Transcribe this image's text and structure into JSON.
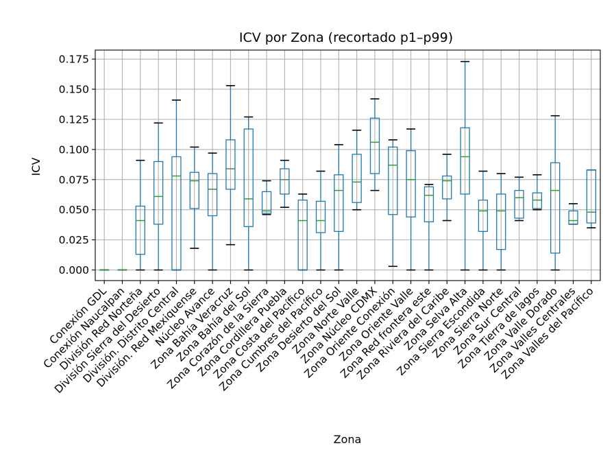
{
  "chart_data": {
    "type": "box",
    "title": "ICV por Zona (recortado p1–p99)",
    "xlabel": "Zona",
    "ylabel": "ICV",
    "ylim": [
      -0.0088,
      0.1825
    ],
    "yticks": [
      0.0,
      0.025,
      0.05,
      0.075,
      0.1,
      0.125,
      0.15,
      0.175
    ],
    "ytick_labels": [
      "0.000",
      "0.025",
      "0.050",
      "0.075",
      "0.100",
      "0.125",
      "0.150",
      "0.175"
    ],
    "grid": true,
    "colors": {
      "box": "#1f77b4",
      "median": "#2ca02c",
      "grid": "#b0b0b0"
    },
    "categories": [
      "Conexión GDL",
      "Conexión Naucalpan",
      "División Red Norteña",
      "División Sierra del Desierto",
      "División. Distrito Central",
      "División. Red Mexiquense",
      "Núcleo Avance",
      "Zona Bahía Veracruz",
      "Zona Bahía del Sol",
      "Zona Corazón de la Sierra",
      "Zona Cordillera Puebla",
      "Zona Costa del Pacífico",
      "Zona Cumbres del Pacífico",
      "Zona Desierto del Sol",
      "Zona Norte Valle",
      "Zona Núcleo CDMX",
      "Zona Oriente Conexión",
      "Zona Oriente Valle",
      "Zona Red frontera este",
      "Zona Riviera del Caribe",
      "Zona Selva Alta",
      "Zona Sierra Escondida",
      "Zona Sierra Norte",
      "Zona Sur Central",
      "Zona Tierra de lagos",
      "Zona Valle Dorado",
      "Zona Valles Centrales",
      "Zona Valles del Pacífico"
    ],
    "boxes": [
      {
        "whislo": 0.0,
        "q1": 0.0,
        "med": 0.0,
        "q3": 0.0,
        "whishi": 0.0
      },
      {
        "whislo": 0.0,
        "q1": 0.0,
        "med": 0.0,
        "q3": 0.0,
        "whishi": 0.0
      },
      {
        "whislo": 0.0,
        "q1": 0.013,
        "med": 0.041,
        "q3": 0.053,
        "whishi": 0.091
      },
      {
        "whislo": 0.0,
        "q1": 0.038,
        "med": 0.061,
        "q3": 0.09,
        "whishi": 0.122
      },
      {
        "whislo": 0.0,
        "q1": 0.0,
        "med": 0.078,
        "q3": 0.094,
        "whishi": 0.141
      },
      {
        "whislo": 0.018,
        "q1": 0.051,
        "med": 0.074,
        "q3": 0.081,
        "whishi": 0.102
      },
      {
        "whislo": 0.0,
        "q1": 0.045,
        "med": 0.067,
        "q3": 0.08,
        "whishi": 0.097
      },
      {
        "whislo": 0.021,
        "q1": 0.067,
        "med": 0.084,
        "q3": 0.108,
        "whishi": 0.153
      },
      {
        "whislo": 0.0,
        "q1": 0.036,
        "med": 0.059,
        "q3": 0.117,
        "whishi": 0.127
      },
      {
        "whislo": 0.046,
        "q1": 0.047,
        "med": 0.049,
        "q3": 0.065,
        "whishi": 0.074
      },
      {
        "whislo": 0.052,
        "q1": 0.063,
        "med": 0.075,
        "q3": 0.084,
        "whishi": 0.091
      },
      {
        "whislo": 0.0,
        "q1": 0.0,
        "med": 0.041,
        "q3": 0.058,
        "whishi": 0.063
      },
      {
        "whislo": 0.0,
        "q1": 0.031,
        "med": 0.041,
        "q3": 0.057,
        "whishi": 0.082
      },
      {
        "whislo": 0.0,
        "q1": 0.032,
        "med": 0.066,
        "q3": 0.079,
        "whishi": 0.104
      },
      {
        "whislo": 0.05,
        "q1": 0.056,
        "med": 0.073,
        "q3": 0.096,
        "whishi": 0.116
      },
      {
        "whislo": 0.066,
        "q1": 0.08,
        "med": 0.106,
        "q3": 0.126,
        "whishi": 0.142
      },
      {
        "whislo": 0.003,
        "q1": 0.046,
        "med": 0.087,
        "q3": 0.102,
        "whishi": 0.108
      },
      {
        "whislo": 0.0,
        "q1": 0.044,
        "med": 0.075,
        "q3": 0.099,
        "whishi": 0.117
      },
      {
        "whislo": 0.0,
        "q1": 0.04,
        "med": 0.062,
        "q3": 0.069,
        "whishi": 0.071
      },
      {
        "whislo": 0.041,
        "q1": 0.059,
        "med": 0.074,
        "q3": 0.078,
        "whishi": 0.096
      },
      {
        "whislo": 0.0,
        "q1": 0.063,
        "med": 0.094,
        "q3": 0.118,
        "whishi": 0.173
      },
      {
        "whislo": 0.0,
        "q1": 0.032,
        "med": 0.049,
        "q3": 0.058,
        "whishi": 0.082
      },
      {
        "whislo": 0.0,
        "q1": 0.017,
        "med": 0.049,
        "q3": 0.063,
        "whishi": 0.08
      },
      {
        "whislo": 0.041,
        "q1": 0.043,
        "med": 0.06,
        "q3": 0.066,
        "whishi": 0.077
      },
      {
        "whislo": 0.05,
        "q1": 0.051,
        "med": 0.058,
        "q3": 0.064,
        "whishi": 0.079
      },
      {
        "whislo": 0.0,
        "q1": 0.014,
        "med": 0.066,
        "q3": 0.089,
        "whishi": 0.128
      },
      {
        "whislo": 0.038,
        "q1": 0.038,
        "med": 0.041,
        "q3": 0.049,
        "whishi": 0.055
      },
      {
        "whislo": 0.035,
        "q1": 0.039,
        "med": 0.048,
        "q3": 0.083,
        "whishi": 0.083
      }
    ]
  }
}
